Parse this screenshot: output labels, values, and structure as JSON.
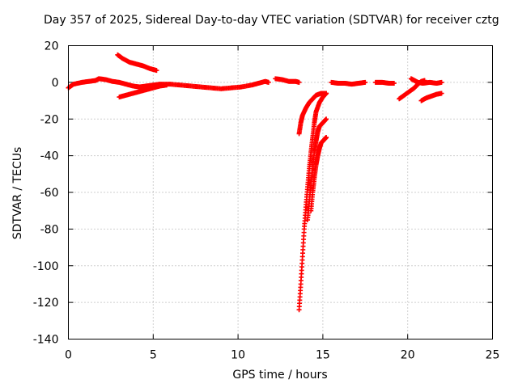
{
  "chart_data": {
    "type": "scatter",
    "title": "Day 357 of 2025, Sidereal Day-to-day VTEC variation (SDTVAR) for receiver cztg",
    "xlabel": "GPS time / hours",
    "ylabel": "SDTVAR / TECUs",
    "xlim": [
      0,
      25
    ],
    "ylim": [
      -140,
      20
    ],
    "xticks": [
      0,
      5,
      10,
      15,
      20,
      25
    ],
    "yticks": [
      -140,
      -120,
      -100,
      -80,
      -60,
      -40,
      -20,
      0,
      20
    ],
    "grid": true,
    "marker": "+",
    "color": "#ff0000",
    "segments": [
      {
        "points": [
          [
            0.0,
            -3
          ],
          [
            0.3,
            -1
          ],
          [
            0.8,
            0
          ],
          [
            1.2,
            0.5
          ],
          [
            1.6,
            1
          ],
          [
            1.8,
            2
          ],
          [
            2.2,
            1.5
          ],
          [
            2.6,
            0.5
          ],
          [
            3.0,
            0
          ],
          [
            3.4,
            -1
          ],
          [
            3.8,
            -2
          ],
          [
            4.2,
            -2.5
          ],
          [
            4.6,
            -2
          ],
          [
            5.0,
            -1.5
          ],
          [
            5.4,
            -1
          ],
          [
            6.0,
            -1
          ],
          [
            6.6,
            -1.5
          ],
          [
            7.2,
            -2
          ],
          [
            7.8,
            -2.5
          ],
          [
            8.4,
            -3
          ],
          [
            9.0,
            -3.5
          ],
          [
            9.6,
            -3
          ],
          [
            10.2,
            -2.5
          ],
          [
            10.8,
            -1.5
          ],
          [
            11.2,
            -0.5
          ],
          [
            11.6,
            0.5
          ],
          [
            11.8,
            0
          ]
        ]
      },
      {
        "points": [
          [
            3.0,
            -8
          ],
          [
            3.4,
            -7
          ],
          [
            3.8,
            -6
          ],
          [
            4.2,
            -5
          ],
          [
            4.6,
            -4
          ],
          [
            5.0,
            -3
          ],
          [
            5.4,
            -2
          ],
          [
            5.8,
            -1.5
          ]
        ]
      },
      {
        "points": [
          [
            2.9,
            15
          ],
          [
            3.2,
            13
          ],
          [
            3.6,
            11
          ],
          [
            4.0,
            10
          ],
          [
            4.4,
            9
          ],
          [
            4.8,
            7.5
          ],
          [
            5.2,
            6.5
          ]
        ]
      },
      {
        "points": [
          [
            12.2,
            2
          ],
          [
            12.6,
            1.5
          ],
          [
            13.0,
            0.5
          ],
          [
            13.4,
            0.5
          ],
          [
            13.6,
            0
          ]
        ]
      },
      {
        "points": [
          [
            13.6,
            -28
          ],
          [
            13.7,
            -22
          ],
          [
            13.8,
            -18
          ],
          [
            14.0,
            -14
          ],
          [
            14.2,
            -11
          ],
          [
            14.4,
            -9
          ],
          [
            14.6,
            -7
          ],
          [
            14.9,
            -6
          ],
          [
            15.2,
            -6
          ]
        ]
      },
      {
        "points": [
          [
            13.6,
            -124
          ],
          [
            13.7,
            -110
          ],
          [
            13.8,
            -95
          ],
          [
            13.9,
            -80
          ],
          [
            14.0,
            -68
          ],
          [
            14.1,
            -57
          ],
          [
            14.2,
            -47
          ],
          [
            14.3,
            -38
          ],
          [
            14.4,
            -30
          ],
          [
            14.5,
            -22
          ],
          [
            14.6,
            -16
          ],
          [
            14.8,
            -11
          ],
          [
            15.0,
            -8
          ],
          [
            15.2,
            -6
          ]
        ]
      },
      {
        "points": [
          [
            14.1,
            -75
          ],
          [
            14.2,
            -65
          ],
          [
            14.3,
            -55
          ],
          [
            14.4,
            -46
          ],
          [
            14.5,
            -38
          ],
          [
            14.6,
            -32
          ],
          [
            14.7,
            -27
          ],
          [
            14.8,
            -24
          ],
          [
            15.0,
            -22
          ],
          [
            15.2,
            -20
          ]
        ]
      },
      {
        "points": [
          [
            14.3,
            -70
          ],
          [
            14.4,
            -60
          ],
          [
            14.5,
            -52
          ],
          [
            14.6,
            -45
          ],
          [
            14.7,
            -40
          ],
          [
            14.8,
            -36
          ],
          [
            14.9,
            -33
          ],
          [
            15.1,
            -31
          ],
          [
            15.2,
            -30
          ]
        ]
      },
      {
        "points": [
          [
            15.5,
            0
          ],
          [
            15.9,
            -0.5
          ],
          [
            16.3,
            -0.5
          ],
          [
            16.7,
            -1
          ],
          [
            17.1,
            -0.5
          ],
          [
            17.5,
            0
          ]
        ]
      },
      {
        "points": [
          [
            18.1,
            0
          ],
          [
            18.5,
            0
          ],
          [
            18.9,
            -0.5
          ],
          [
            19.2,
            -0.5
          ]
        ]
      },
      {
        "points": [
          [
            19.5,
            -9
          ],
          [
            19.8,
            -7
          ],
          [
            20.1,
            -5
          ],
          [
            20.4,
            -3
          ],
          [
            20.6,
            -1
          ],
          [
            20.8,
            0.5
          ],
          [
            21.0,
            1
          ]
        ]
      },
      {
        "points": [
          [
            20.2,
            2
          ],
          [
            20.4,
            1
          ],
          [
            20.6,
            0
          ],
          [
            20.9,
            -0.5
          ],
          [
            21.3,
            0
          ],
          [
            21.7,
            -0.5
          ],
          [
            22.0,
            0
          ]
        ]
      },
      {
        "points": [
          [
            20.8,
            -10
          ],
          [
            21.1,
            -8.5
          ],
          [
            21.4,
            -7.5
          ],
          [
            21.7,
            -6.5
          ],
          [
            22.0,
            -6
          ]
        ]
      }
    ]
  }
}
